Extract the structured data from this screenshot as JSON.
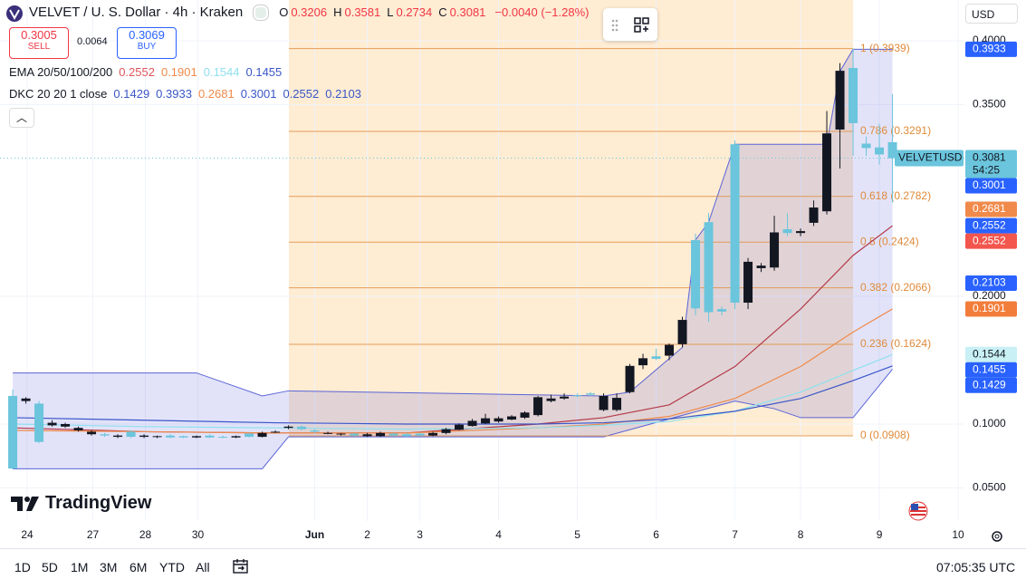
{
  "header": {
    "symbol": "VELVET / U. S. Dollar · 4h · Kraken",
    "ohlc": [
      {
        "key": "O",
        "value": "0.3206"
      },
      {
        "key": "H",
        "value": "0.3581"
      },
      {
        "key": "L",
        "value": "0.2734"
      },
      {
        "key": "C",
        "value": "0.3081"
      }
    ],
    "change": "−0.0040 (−1.28%)",
    "sell": {
      "price": "0.3005",
      "label": "SELL"
    },
    "spread": "0.0064",
    "buy": {
      "price": "0.3069",
      "label": "BUY"
    },
    "indicators": [
      {
        "name": "EMA 20/50/100/200",
        "values": [
          {
            "text": "0.2552",
            "color": "#e0565b"
          },
          {
            "text": "0.1901",
            "color": "#f08a4b"
          },
          {
            "text": "0.1544",
            "color": "#8fe0ee"
          },
          {
            "text": "0.1455",
            "color": "#3a56c8"
          }
        ]
      },
      {
        "name": "DKC 20 20 1 close",
        "values": [
          {
            "text": "0.1429",
            "color": "#3a56c8"
          },
          {
            "text": "0.3933",
            "color": "#3a56c8"
          },
          {
            "text": "0.2681",
            "color": "#f08a4b"
          },
          {
            "text": "0.3001",
            "color": "#3a56c8"
          },
          {
            "text": "0.2552",
            "color": "#3a56c8"
          },
          {
            "text": "0.2103",
            "color": "#3a56c8"
          }
        ]
      }
    ],
    "currency": "USD"
  },
  "chart_data": {
    "type": "candlestick",
    "up_color": "#131722",
    "down_color": "#6bc5dc",
    "open": [
      0.122,
      0.118,
      0.116,
      0.099,
      0.098,
      0.095,
      0.092,
      0.092,
      0.09,
      0.094,
      0.09,
      0.09,
      0.091,
      0.0905,
      0.0895,
      0.091,
      0.09,
      0.0895,
      0.0925,
      0.09,
      0.0935,
      0.097,
      0.098,
      0.095,
      0.0925,
      0.092,
      0.0925,
      0.0905,
      0.0905,
      0.0925,
      0.092,
      0.0925,
      0.091,
      0.093,
      0.0955,
      0.0985,
      0.1005,
      0.102,
      0.1035,
      0.105,
      0.107,
      0.118,
      0.12,
      0.1225,
      0.124,
      0.111,
      0.111,
      0.125,
      0.146,
      0.153,
      0.1535,
      0.1625,
      0.244,
      0.258,
      0.19,
      0.319,
      0.195,
      0.222,
      0.2225,
      0.2525,
      0.2495,
      0.2575,
      0.2665,
      0.3305,
      0.3787,
      0.3195,
      0.3165,
      0.3206
    ],
    "high": [
      0.127,
      0.121,
      0.118,
      0.103,
      0.101,
      0.098,
      0.095,
      0.093,
      0.092,
      0.095,
      0.092,
      0.091,
      0.092,
      0.091,
      0.091,
      0.092,
      0.091,
      0.091,
      0.093,
      0.094,
      0.095,
      0.099,
      0.099,
      0.096,
      0.094,
      0.093,
      0.093,
      0.093,
      0.094,
      0.093,
      0.093,
      0.093,
      0.094,
      0.097,
      0.1005,
      0.104,
      0.108,
      0.106,
      0.107,
      0.11,
      0.122,
      0.123,
      0.124,
      0.124,
      0.125,
      0.124,
      0.124,
      0.147,
      0.155,
      0.159,
      0.163,
      0.184,
      0.249,
      0.265,
      0.192,
      0.322,
      0.23,
      0.226,
      0.263,
      0.265,
      0.253,
      0.275,
      0.345,
      0.3825,
      0.3939,
      0.325,
      0.335,
      0.3581
    ],
    "low": [
      0.0645,
      0.116,
      0.085,
      0.098,
      0.097,
      0.094,
      0.091,
      0.09,
      0.089,
      0.089,
      0.089,
      0.089,
      0.089,
      0.089,
      0.089,
      0.089,
      0.089,
      0.089,
      0.0895,
      0.0895,
      0.093,
      0.096,
      0.095,
      0.093,
      0.092,
      0.091,
      0.0905,
      0.09,
      0.09,
      0.0905,
      0.09,
      0.0905,
      0.0905,
      0.092,
      0.095,
      0.098,
      0.1,
      0.101,
      0.103,
      0.104,
      0.106,
      0.117,
      0.119,
      0.121,
      0.122,
      0.11,
      0.11,
      0.124,
      0.143,
      0.15,
      0.15,
      0.16,
      0.185,
      0.18,
      0.185,
      0.19,
      0.19,
      0.219,
      0.22,
      0.247,
      0.247,
      0.255,
      0.264,
      0.3,
      0.31,
      0.31,
      0.303,
      0.2734
    ],
    "close": [
      0.0652,
      0.12,
      0.086,
      0.101,
      0.1,
      0.097,
      0.094,
      0.091,
      0.091,
      0.09,
      0.091,
      0.0905,
      0.0895,
      0.0895,
      0.0905,
      0.0895,
      0.0895,
      0.0905,
      0.09,
      0.093,
      0.094,
      0.098,
      0.096,
      0.094,
      0.093,
      0.0925,
      0.091,
      0.092,
      0.093,
      0.091,
      0.0905,
      0.091,
      0.093,
      0.096,
      0.0995,
      0.1025,
      0.1045,
      0.1045,
      0.106,
      0.109,
      0.121,
      0.12,
      0.1215,
      0.122,
      0.123,
      0.122,
      0.1205,
      0.1455,
      0.1515,
      0.151,
      0.162,
      0.1815,
      0.1905,
      0.1875,
      0.188,
      0.195,
      0.227,
      0.224,
      0.25,
      0.2495,
      0.251,
      0.2695,
      0.3275,
      0.3765,
      0.3355,
      0.316,
      0.311,
      0.3081
    ],
    "xlim": [
      -0.97,
      72.48
    ],
    "xticks": [
      {
        "value": 1.1,
        "label": "24"
      },
      {
        "value": 6.1,
        "label": "27"
      },
      {
        "value": 10.1,
        "label": "28"
      },
      {
        "value": 14.1,
        "label": "30"
      },
      {
        "value": 23,
        "label": "Jun"
      },
      {
        "value": 27,
        "label": "2"
      },
      {
        "value": 31,
        "label": "3"
      },
      {
        "value": 37,
        "label": "4"
      },
      {
        "value": 43,
        "label": "5"
      },
      {
        "value": 49,
        "label": "6"
      },
      {
        "value": 55,
        "label": "7"
      },
      {
        "value": 60,
        "label": "8"
      },
      {
        "value": 66,
        "label": "9"
      },
      {
        "value": 72,
        "label": "10"
      }
    ],
    "ylim": [
      0.0241,
      0.4319
    ],
    "yticks": [
      {
        "value": 0.05,
        "label": "0.0500"
      },
      {
        "value": 0.1,
        "label": "0.1000"
      },
      {
        "value": 0.2,
        "label": "0.2000"
      },
      {
        "value": 0.35,
        "label": "0.3500"
      },
      {
        "value": 0.4,
        "label": "0.4000"
      }
    ],
    "grid": true,
    "band": {
      "upper": {
        "name": "DKC upper",
        "color": "#5b63d6",
        "x": [
          0,
          14,
          19,
          21,
          45,
          47,
          51,
          52,
          53,
          55,
          62,
          63,
          64,
          67
        ],
        "values": [
          0.14,
          0.14,
          0.122,
          0.126,
          0.122,
          0.125,
          0.16,
          0.244,
          0.258,
          0.319,
          0.319,
          0.376,
          0.3933,
          0.3933
        ]
      },
      "lower": {
        "name": "DKC lower",
        "color": "#5b63d6",
        "x": [
          0,
          19,
          21,
          45,
          55,
          58,
          60,
          64,
          67
        ],
        "values": [
          0.065,
          0.065,
          0.09,
          0.09,
          0.118,
          0.112,
          0.105,
          0.105,
          0.1429
        ]
      }
    },
    "overlays": [
      {
        "name": "EMA 20",
        "color": "#b33a4a",
        "x": [
          0,
          10,
          20,
          30,
          40,
          45,
          50,
          55,
          60,
          64,
          67
        ],
        "values": [
          0.097,
          0.094,
          0.093,
          0.093,
          0.1,
          0.105,
          0.115,
          0.145,
          0.19,
          0.232,
          0.2552
        ]
      },
      {
        "name": "EMA 50",
        "color": "#f08a4b",
        "x": [
          0,
          10,
          20,
          30,
          40,
          45,
          50,
          55,
          60,
          64,
          67
        ],
        "values": [
          0.095,
          0.094,
          0.093,
          0.093,
          0.097,
          0.1,
          0.106,
          0.12,
          0.145,
          0.172,
          0.1901
        ]
      },
      {
        "name": "EMA 100",
        "color": "#8fe0ee",
        "x": [
          0,
          10,
          20,
          30,
          40,
          45,
          50,
          55,
          60,
          64,
          67
        ],
        "values": [
          0.1,
          0.098,
          0.097,
          0.096,
          0.097,
          0.099,
          0.102,
          0.11,
          0.125,
          0.142,
          0.1544
        ]
      },
      {
        "name": "EMA 200",
        "color": "#3a56c8",
        "x": [
          0,
          10,
          20,
          30,
          40,
          45,
          50,
          55,
          60,
          64,
          67
        ],
        "values": [
          0.105,
          0.103,
          0.101,
          0.1,
          0.1,
          0.101,
          0.104,
          0.11,
          0.12,
          0.134,
          0.1455
        ]
      }
    ],
    "fib_color": "#e08a3a",
    "fib_levels": [
      {
        "value": 0.3939,
        "label": "1 (0.3939)"
      },
      {
        "value": 0.3291,
        "label": "0.786 (0.3291)"
      },
      {
        "value": 0.2782,
        "label": "0.618 (0.2782)"
      },
      {
        "value": 0.2424,
        "label": "0.5 (0.2424)"
      },
      {
        "value": 0.2066,
        "label": "0.382 (0.2066)"
      },
      {
        "value": 0.1624,
        "label": "0.236 (0.1624)"
      },
      {
        "value": 0.0908,
        "label": "0 (0.0908)"
      }
    ],
    "last_price": {
      "symbol": "VELVETUSD",
      "value": 0.3081,
      "countdown": "54:25",
      "color": "#6bc5dc"
    },
    "price_tags": [
      {
        "value": 0.3933,
        "color": "#2962ff"
      },
      {
        "value": 0.3001,
        "color": "#2962ff"
      },
      {
        "value": 0.2681,
        "color": "#f08a4b"
      },
      {
        "value": 0.2552,
        "color": "#2962ff"
      },
      {
        "value": 0.2552,
        "color": "#f2564d"
      },
      {
        "value": 0.2103,
        "color": "#2962ff"
      },
      {
        "value": 0.1901,
        "color": "#f27d3b"
      },
      {
        "value": 0.1544,
        "color": "#c8f0f5",
        "text_color": "#131722"
      },
      {
        "value": 0.1455,
        "color": "#2962ff"
      },
      {
        "value": 0.1429,
        "color": "#2962ff"
      }
    ]
  },
  "brand": "TradingView",
  "footer": {
    "ranges": [
      "1D",
      "5D",
      "1M",
      "3M",
      "6M",
      "YTD",
      "All"
    ],
    "clock": "07:05:35 UTC"
  }
}
